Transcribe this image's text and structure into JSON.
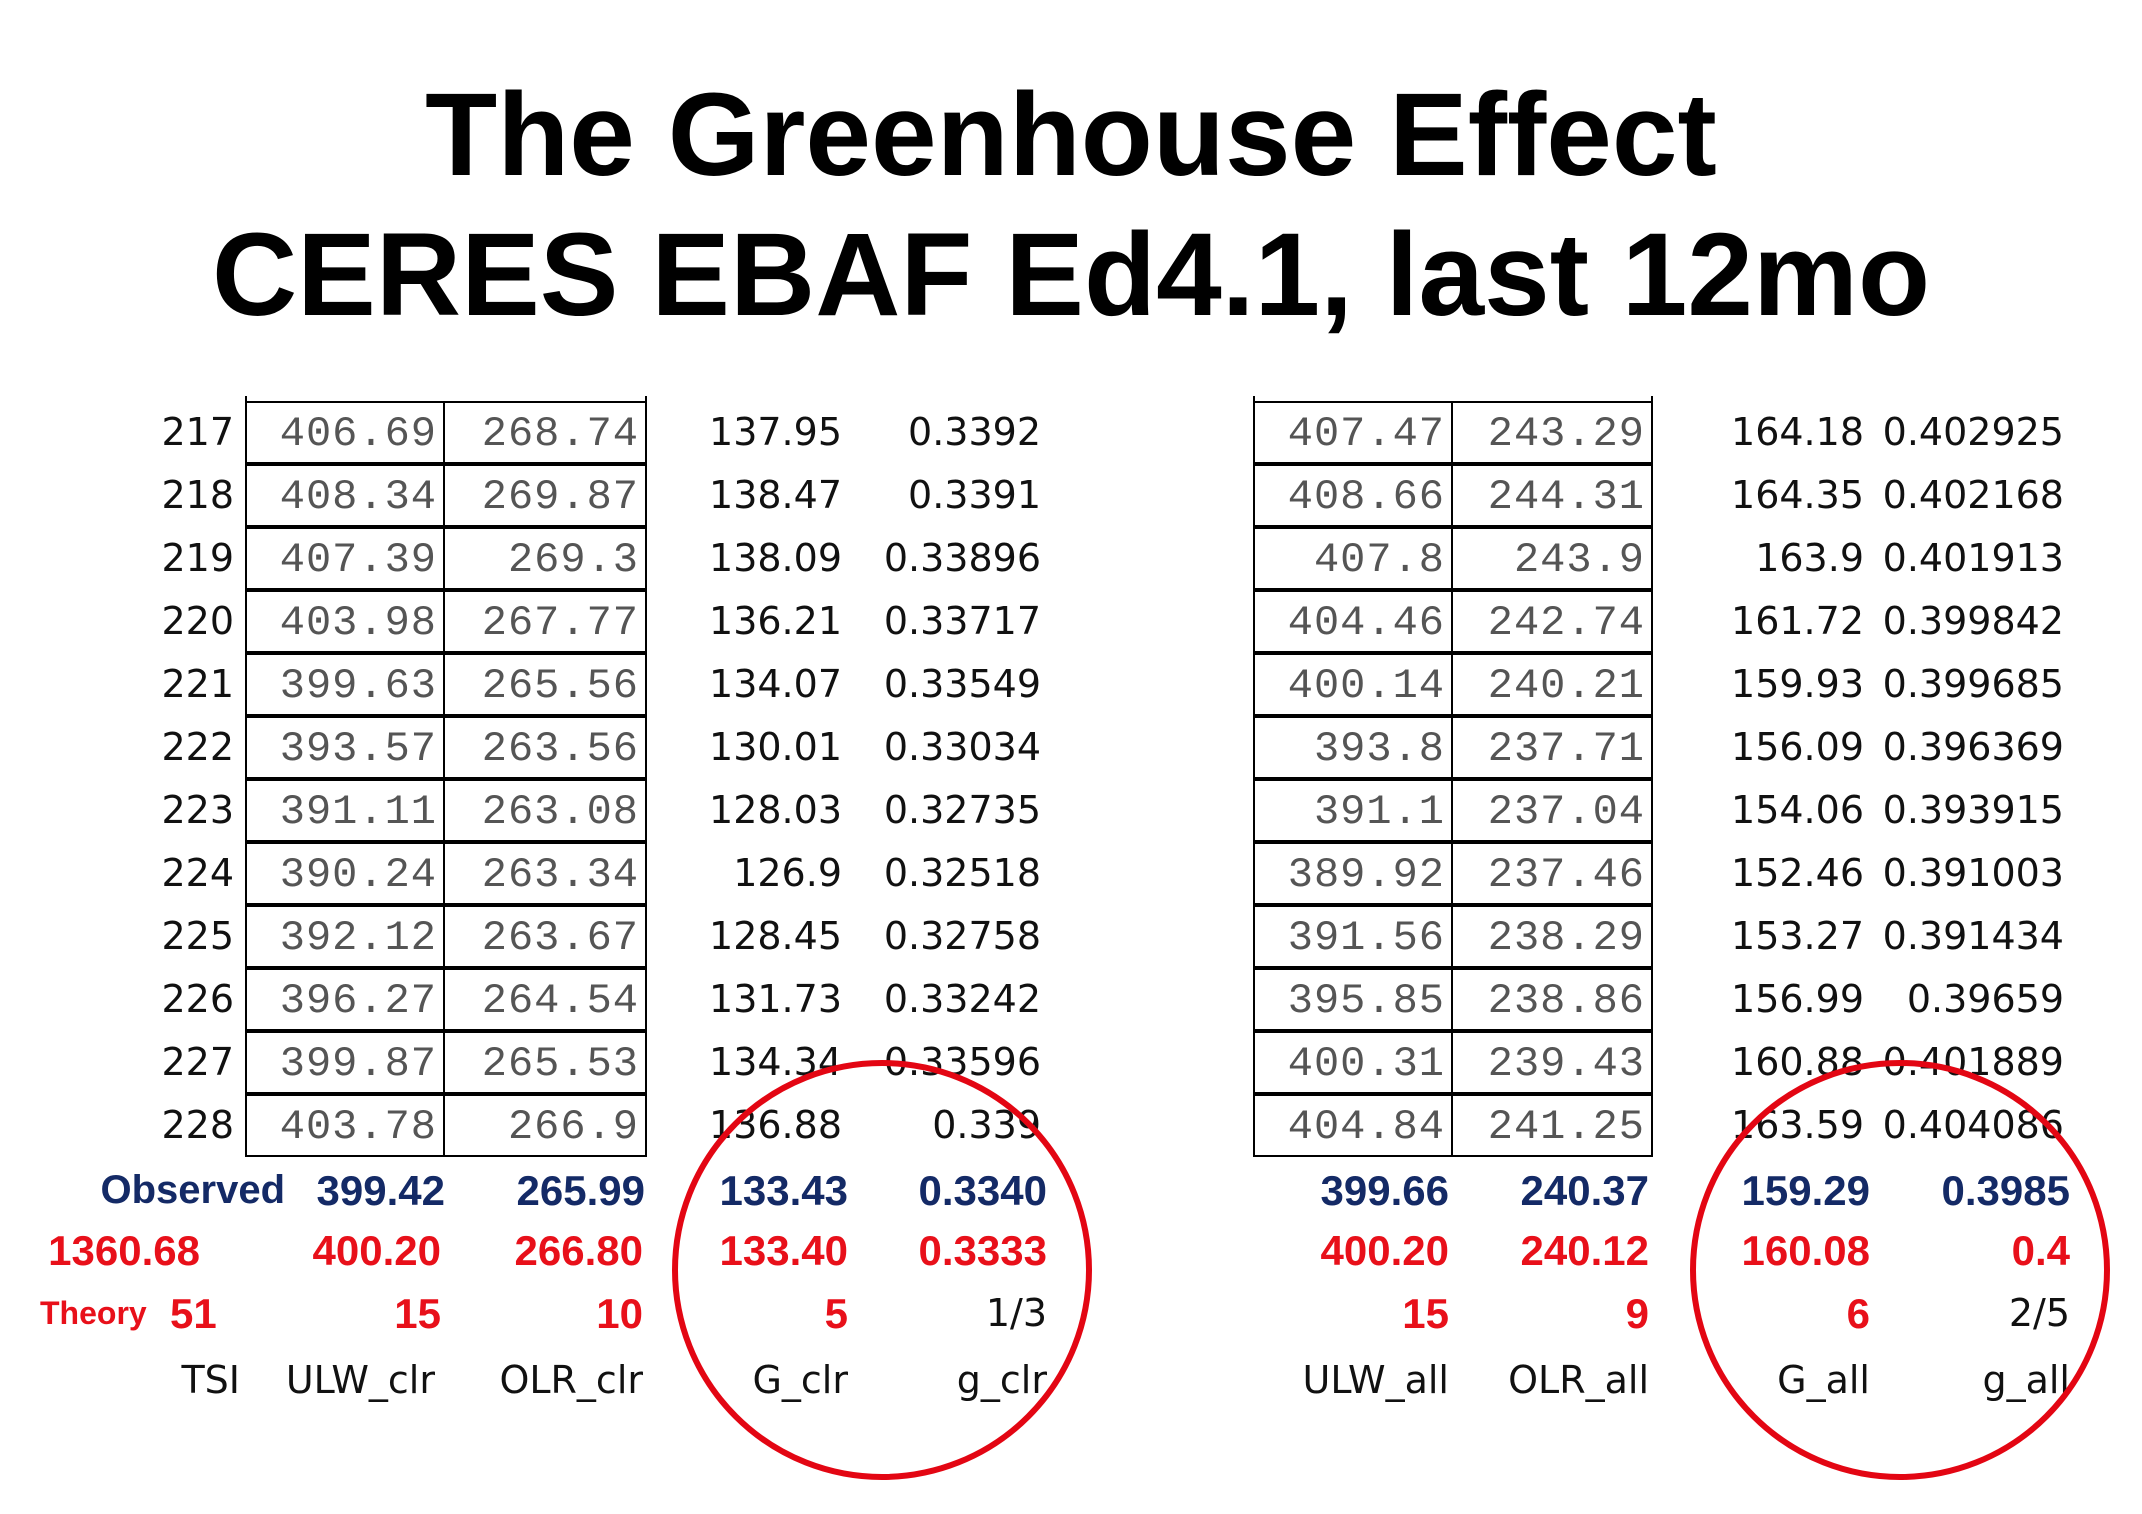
{
  "title_line1": "The Greenhouse Effect",
  "title_line2": "CERES EBAF Ed4.1, last 12mo",
  "clear": {
    "rows": [
      [
        "217",
        "406.69",
        "268.74",
        "137.95",
        "0.3392"
      ],
      [
        "218",
        "408.34",
        "269.87",
        "138.47",
        "0.3391"
      ],
      [
        "219",
        "407.39",
        "269.3",
        "138.09",
        "0.33896"
      ],
      [
        "220",
        "403.98",
        "267.77",
        "136.21",
        "0.33717"
      ],
      [
        "221",
        "399.63",
        "265.56",
        "134.07",
        "0.33549"
      ],
      [
        "222",
        "393.57",
        "263.56",
        "130.01",
        "0.33034"
      ],
      [
        "223",
        "391.11",
        "263.08",
        "128.03",
        "0.32735"
      ],
      [
        "224",
        "390.24",
        "263.34",
        "126.9",
        "0.32518"
      ],
      [
        "225",
        "392.12",
        "263.67",
        "128.45",
        "0.32758"
      ],
      [
        "226",
        "396.27",
        "264.54",
        "131.73",
        "0.33242"
      ],
      [
        "227",
        "399.87",
        "265.53",
        "134.34",
        "0.33596"
      ],
      [
        "228",
        "403.78",
        "266.9",
        "136.88",
        "0.339"
      ]
    ],
    "observed_label": "Observed",
    "observed": [
      "399.42",
      "265.99",
      "133.43",
      "0.3340"
    ],
    "theory_row": [
      "1360.68",
      "400.20",
      "266.80",
      "133.40",
      "0.3333"
    ],
    "integer_label": "Theory",
    "integers": [
      "51",
      "15",
      "10",
      "5",
      "1/3"
    ],
    "headers": [
      "TSI",
      "ULW_clr",
      "OLR_clr",
      "G_clr",
      "g_clr"
    ]
  },
  "all_sky": {
    "rows": [
      [
        "407.47",
        "243.29",
        "164.18",
        "0.402925"
      ],
      [
        "408.66",
        "244.31",
        "164.35",
        "0.402168"
      ],
      [
        "407.8",
        "243.9",
        "163.9",
        "0.401913"
      ],
      [
        "404.46",
        "242.74",
        "161.72",
        "0.399842"
      ],
      [
        "400.14",
        "240.21",
        "159.93",
        "0.399685"
      ],
      [
        "393.8",
        "237.71",
        "156.09",
        "0.396369"
      ],
      [
        "391.1",
        "237.04",
        "154.06",
        "0.393915"
      ],
      [
        "389.92",
        "237.46",
        "152.46",
        "0.391003"
      ],
      [
        "391.56",
        "238.29",
        "153.27",
        "0.391434"
      ],
      [
        "395.85",
        "238.86",
        "156.99",
        "0.39659"
      ],
      [
        "400.31",
        "239.43",
        "160.88",
        "0.401889"
      ],
      [
        "404.84",
        "241.25",
        "163.59",
        "0.404086"
      ]
    ],
    "observed": [
      "399.66",
      "240.37",
      "159.29",
      "0.3985"
    ],
    "theory_row": [
      "400.20",
      "240.12",
      "160.08",
      "0.4"
    ],
    "integers": [
      "15",
      "9",
      "6",
      "2/5"
    ],
    "headers": [
      "ULW_all",
      "OLR_all",
      "G_all",
      "g_all"
    ]
  },
  "colors": {
    "observed": "#142a66",
    "theory": "#e8101a",
    "circle": "#e30613"
  }
}
